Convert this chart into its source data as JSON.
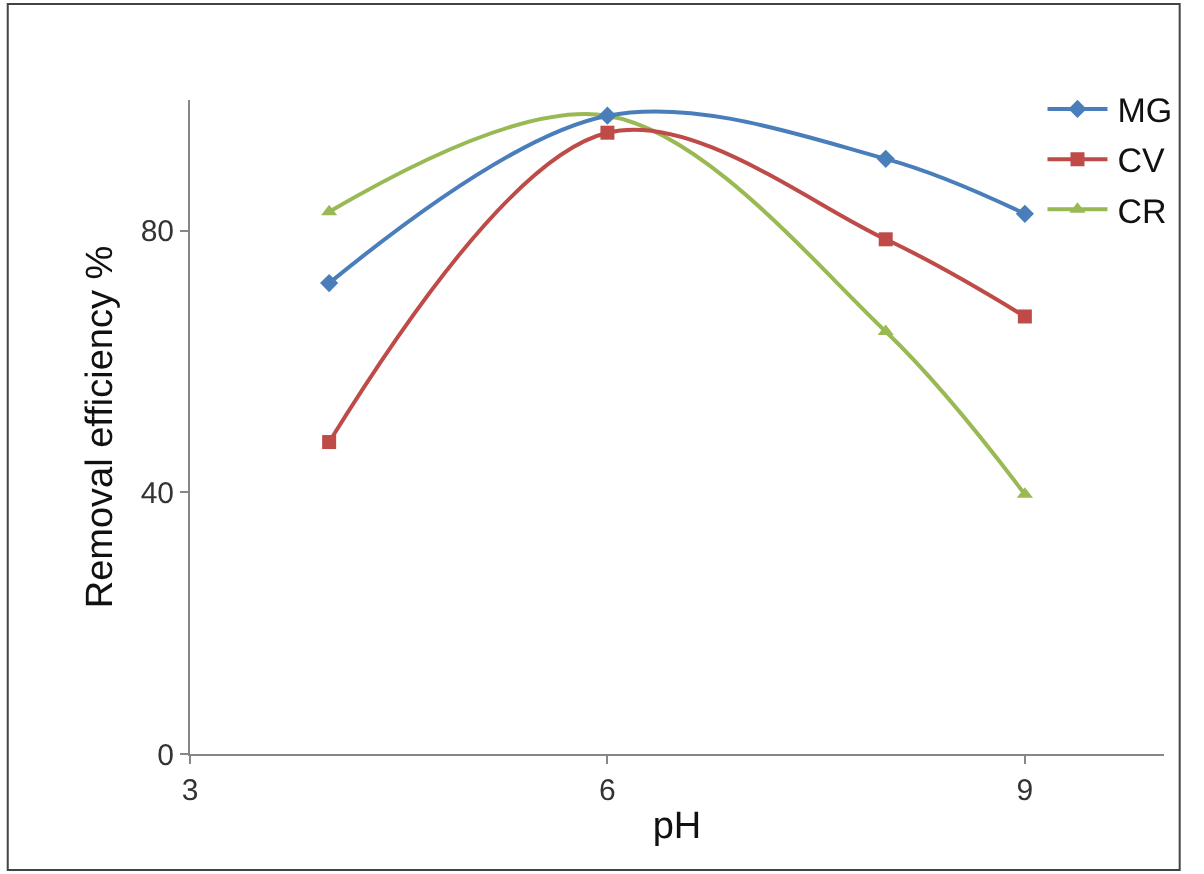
{
  "chart_data": {
    "type": "line",
    "xlabel": "pH",
    "ylabel": "Removal efficiency %",
    "x": [
      4,
      6,
      8,
      9
    ],
    "series": [
      {
        "name": "MG",
        "color": "#4a7ebb",
        "marker": "diamond",
        "values": [
          72,
          97.6,
          91,
          82.6
        ]
      },
      {
        "name": "CV",
        "color": "#be4b48",
        "marker": "square",
        "values": [
          47.7,
          95,
          78.7,
          66.9
        ]
      },
      {
        "name": "CR",
        "color": "#98b954",
        "marker": "triangle",
        "values": [
          82.9,
          97.6,
          64.6,
          39.7
        ]
      }
    ],
    "xlim": [
      3,
      10
    ],
    "xticks": [
      3,
      6,
      9
    ],
    "ylim": [
      0,
      100
    ],
    "yticks": [
      0,
      40,
      80
    ],
    "legend": "top right",
    "line_style": "solid"
  }
}
